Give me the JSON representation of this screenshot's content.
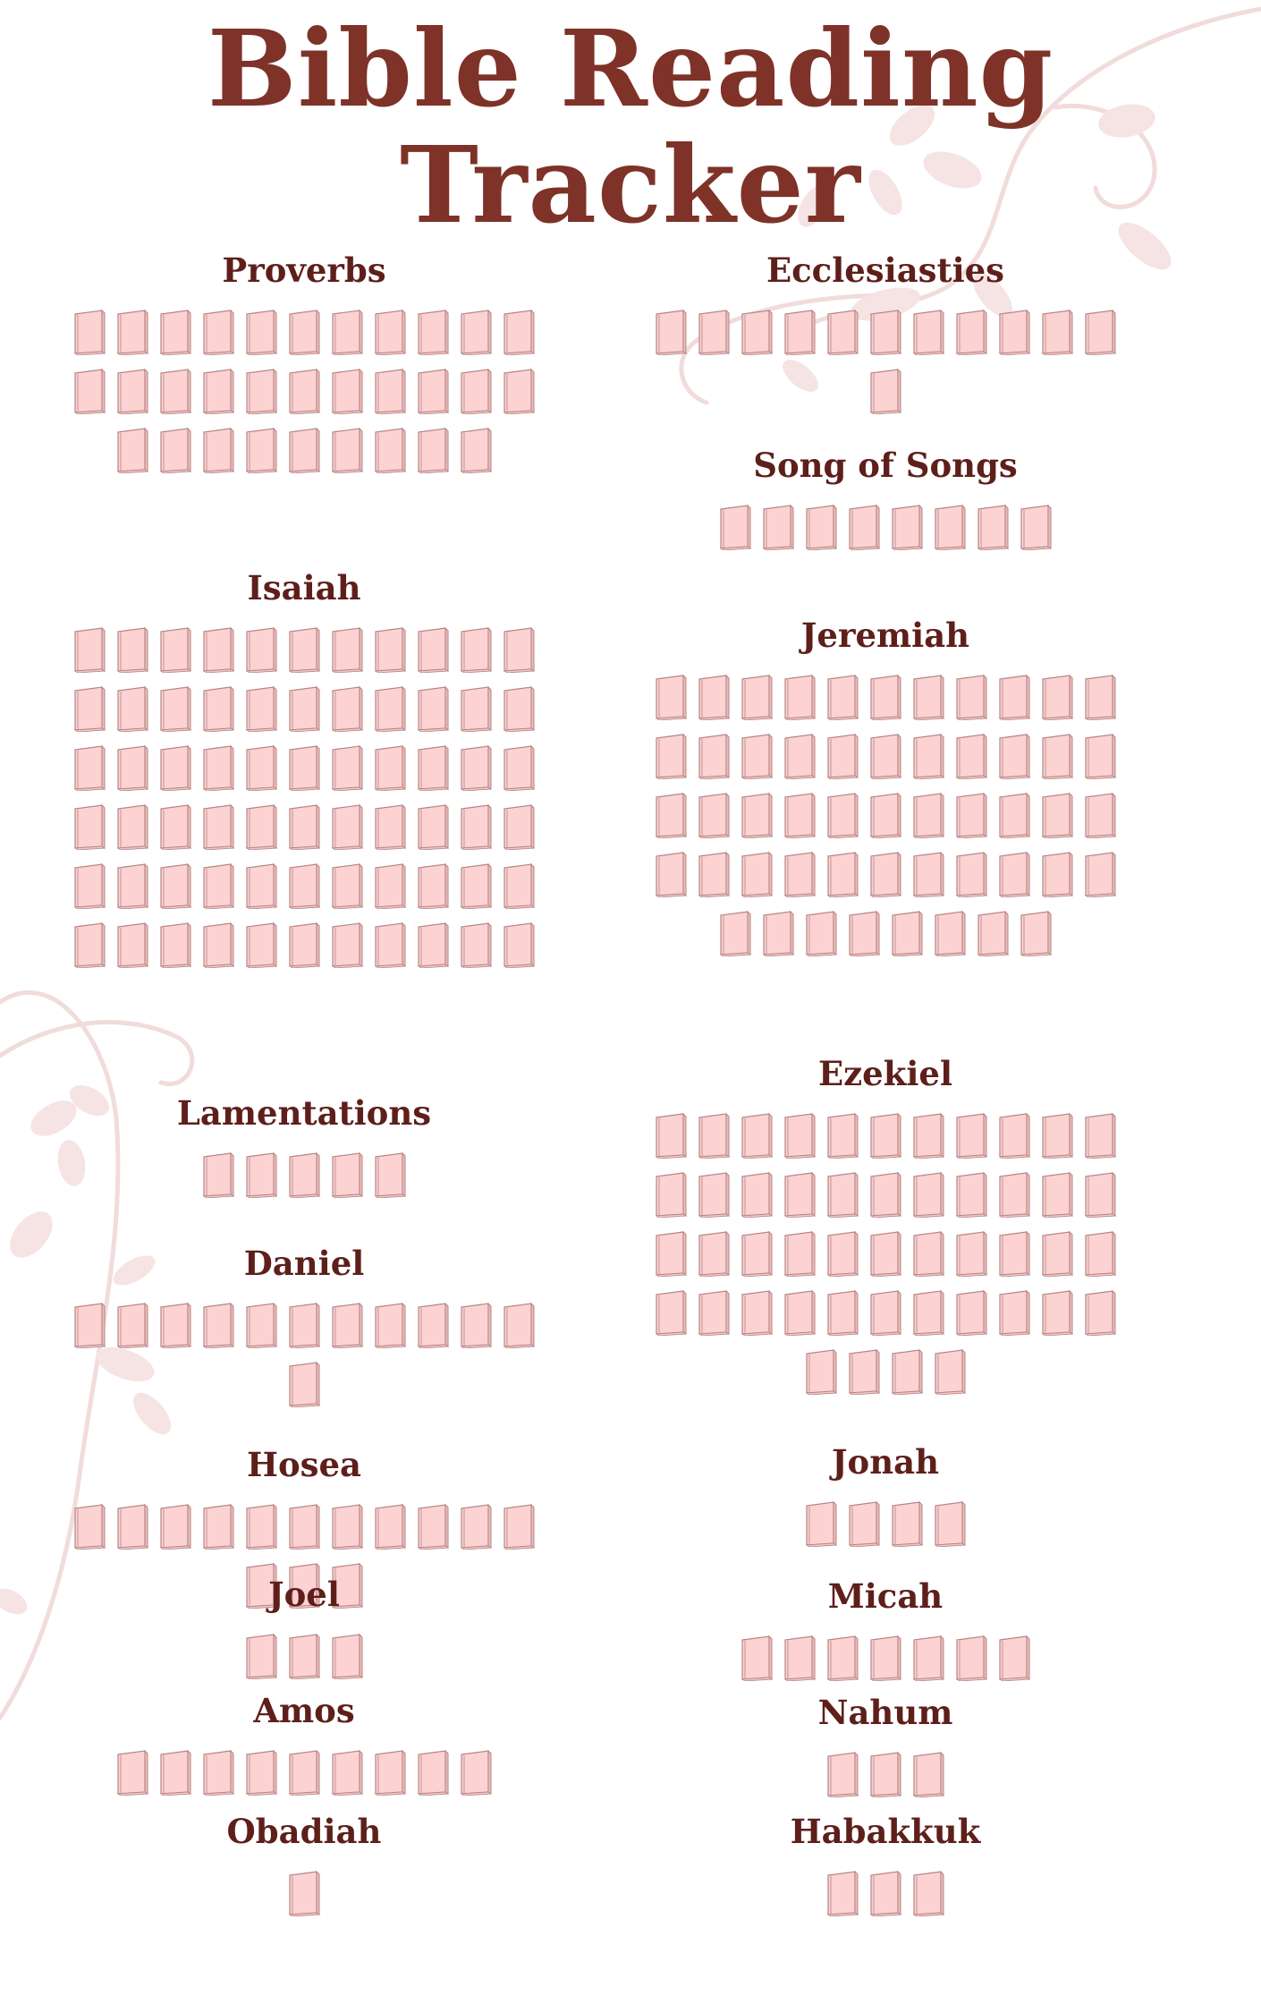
{
  "title": "Bible Reading Tracker",
  "icon": "book-icon",
  "colors": {
    "title": "#7e3228",
    "heading": "#5e1f1b",
    "book_fill": "#fcd2d2",
    "book_edge": "#b58585",
    "floral": "#f2dedd"
  },
  "columns": {
    "left": [
      {
        "name": "Proverbs",
        "chapters": 31
      },
      {
        "name": "Isaiah",
        "chapters": 66
      },
      {
        "name": "Lamentations",
        "chapters": 5
      },
      {
        "name": "Daniel",
        "chapters": 12
      },
      {
        "name": "Hosea",
        "chapters": 14
      },
      {
        "name": "Joel",
        "chapters": 3
      },
      {
        "name": "Amos",
        "chapters": 9
      },
      {
        "name": "Obadiah",
        "chapters": 1
      }
    ],
    "right": [
      {
        "name": "Ecclesiasties",
        "chapters": 12
      },
      {
        "name": "Song of Songs",
        "chapters": 8
      },
      {
        "name": "Jeremiah",
        "chapters": 52
      },
      {
        "name": "Ezekiel",
        "chapters": 48
      },
      {
        "name": "Jonah",
        "chapters": 4
      },
      {
        "name": "Micah",
        "chapters": 7
      },
      {
        "name": "Nahum",
        "chapters": 3
      },
      {
        "name": "Habakkuk",
        "chapters": 3
      }
    ]
  }
}
